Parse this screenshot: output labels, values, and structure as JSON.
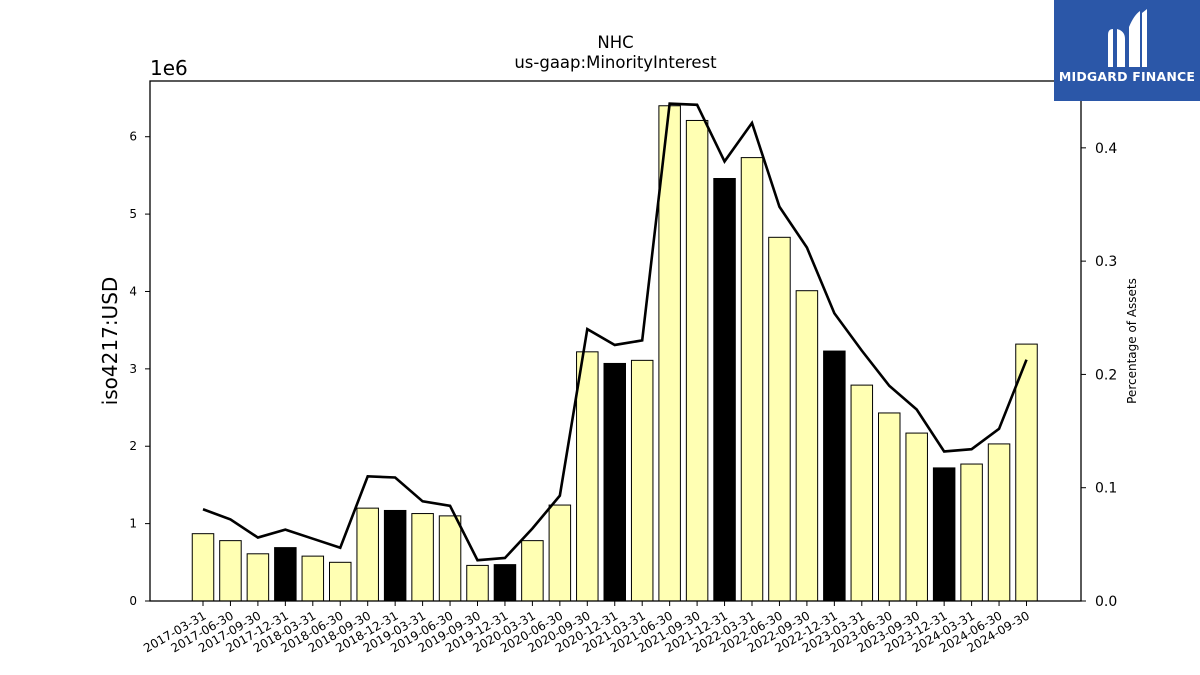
{
  "chart_data": {
    "type": "bar",
    "title": "NHC",
    "subtitle": "us-gaap:MinorityInterest",
    "ylabel": "iso4217:USD",
    "y2label": "Percentage of Assets",
    "y_offset_label": "1e6",
    "ylim": [
      0,
      6.72
    ],
    "y2lim": [
      0,
      0.459
    ],
    "yticks": [
      0,
      1,
      2,
      3,
      4,
      5,
      6
    ],
    "yticklabels": [
      "0",
      "1",
      "2",
      "3",
      "4",
      "5",
      "6"
    ],
    "y2ticks": [
      0.0,
      0.1,
      0.2,
      0.3,
      0.4
    ],
    "y2ticklabels": [
      "0.0",
      "0.1",
      "0.2",
      "0.3",
      "0.4"
    ],
    "categories": [
      "2017-03-31",
      "2017-06-30",
      "2017-09-30",
      "2017-12-31",
      "2018-03-31",
      "2018-06-30",
      "2018-09-30",
      "2018-12-31",
      "2019-03-31",
      "2019-06-30",
      "2019-09-30",
      "2019-12-31",
      "2020-03-31",
      "2020-06-30",
      "2020-09-30",
      "2020-12-31",
      "2021-03-31",
      "2021-06-30",
      "2021-09-30",
      "2021-12-31",
      "2022-03-31",
      "2022-06-30",
      "2022-09-30",
      "2022-12-31",
      "2023-03-31",
      "2023-06-30",
      "2023-09-30",
      "2023-12-31",
      "2024-03-31",
      "2024-06-30",
      "2024-09-30"
    ],
    "series": [
      {
        "type": "bar",
        "values": [
          0.87,
          0.78,
          0.61,
          0.69,
          0.58,
          0.5,
          1.2,
          1.17,
          1.13,
          1.1,
          0.46,
          0.47,
          0.78,
          1.24,
          3.22,
          3.07,
          3.11,
          6.4,
          6.21,
          5.46,
          5.73,
          4.7,
          4.01,
          3.23,
          2.79,
          2.43,
          2.17,
          1.72,
          1.77,
          2.03,
          3.32
        ],
        "highlight": [
          false,
          false,
          false,
          true,
          false,
          false,
          false,
          true,
          false,
          false,
          false,
          true,
          false,
          false,
          false,
          true,
          false,
          false,
          false,
          true,
          false,
          false,
          false,
          true,
          false,
          false,
          false,
          true,
          false,
          false,
          false
        ]
      },
      {
        "type": "line",
        "axis": "right",
        "values": [
          0.081,
          0.072,
          0.056,
          0.063,
          0.055,
          0.047,
          0.11,
          0.109,
          0.088,
          0.084,
          0.036,
          0.038,
          0.064,
          0.093,
          0.24,
          0.226,
          0.23,
          0.439,
          0.438,
          0.388,
          0.422,
          0.348,
          0.312,
          0.254,
          0.221,
          0.19,
          0.169,
          0.132,
          0.134,
          0.152,
          0.213
        ]
      }
    ],
    "colors": {
      "bar": "#ffffb3",
      "bar_highlight": "#000000",
      "line": "#000000",
      "edge": "#000000"
    },
    "grid": false,
    "legend": "none"
  },
  "logo": {
    "text": "MIDGARD FINANCE",
    "color": "#2b57a8"
  }
}
